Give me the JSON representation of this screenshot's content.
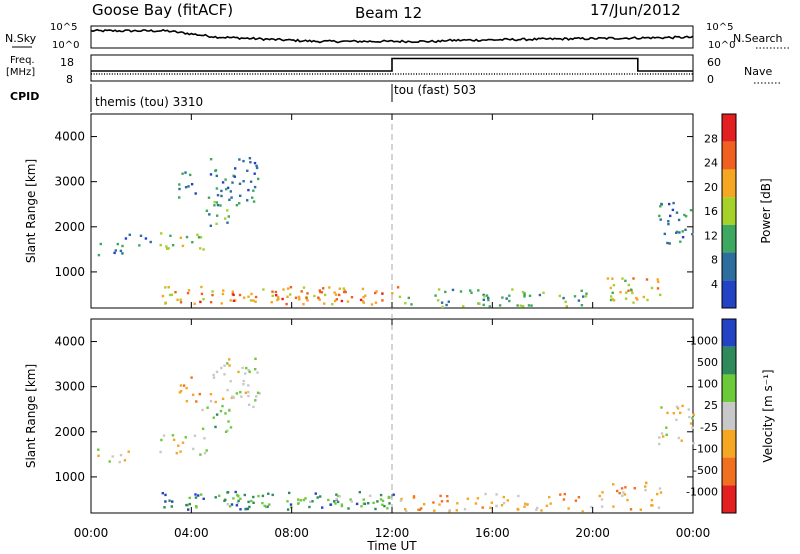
{
  "header": {
    "station": "Goose Bay (fitACF)",
    "beam": "Beam 12",
    "date": "17/Jun/2012"
  },
  "summary": {
    "nsky_label": "N.Sky",
    "nsky_ticks": [
      "10^5",
      "10^0"
    ],
    "nsearch_label": "N.Search",
    "nsearch_ticks": [
      "10^5",
      "10^0"
    ],
    "freq_label": "Freq.",
    "freq_unit": "[MHz]",
    "freq_ticks": [
      "18",
      "8"
    ],
    "nave_label": "Nave",
    "nave_ticks": [
      "60",
      "0"
    ],
    "cpid_label": "CPID",
    "cpid_segments": [
      {
        "name": "themis (tou) 3310",
        "start_hour": 0,
        "end_hour": 12
      },
      {
        "name": "tou (fast) 503",
        "start_hour": 12,
        "end_hour": 24
      }
    ],
    "nave_step": [
      {
        "hour": 0,
        "value": 23
      },
      {
        "hour": 12,
        "value": 23
      },
      {
        "hour": 12,
        "value": 52
      },
      {
        "hour": 21.8,
        "value": 52
      },
      {
        "hour": 21.8,
        "value": 23
      },
      {
        "hour": 24,
        "value": 23
      }
    ]
  },
  "chart_data": [
    {
      "type": "heatmap",
      "name": "power",
      "ylabel": "Slant Range [km]",
      "ylim": [
        200,
        4500
      ],
      "yticks": [
        1000,
        2000,
        3000,
        4000
      ],
      "colorbar_label": "Power [dB]",
      "colorbar_ticks": [
        "28",
        "24",
        "20",
        "16",
        "12",
        "8",
        "4"
      ],
      "colorbar_colors": [
        "#e41f1f",
        "#f06020",
        "#f5a623",
        "#a6d128",
        "#3fa860",
        "#2e6e9e",
        "#2244c4"
      ],
      "regions": [
        {
          "h0": 0.2,
          "h1": 1.6,
          "r0": 1350,
          "r1": 1650,
          "level": 1
        },
        {
          "h0": 1.3,
          "h1": 2.6,
          "r0": 1600,
          "r1": 1850,
          "level": 1
        },
        {
          "h0": 2.7,
          "h1": 4.6,
          "r0": 1500,
          "r1": 1950,
          "level": 3
        },
        {
          "h0": 3.4,
          "h1": 4.3,
          "r0": 2650,
          "r1": 3250,
          "level": 1
        },
        {
          "h0": 4.4,
          "h1": 5.6,
          "r0": 2000,
          "r1": 2700,
          "level": 2
        },
        {
          "h0": 4.7,
          "h1": 6.7,
          "r0": 2500,
          "r1": 3650,
          "level": 1
        },
        {
          "h0": 2.8,
          "h1": 12.3,
          "r0": 300,
          "r1": 700,
          "level": 4
        },
        {
          "h0": 4.2,
          "h1": 11.6,
          "r0": 350,
          "r1": 600,
          "level": 5
        },
        {
          "h0": 12.2,
          "h1": 20.0,
          "r0": 250,
          "r1": 650,
          "level": 2
        },
        {
          "h0": 20.1,
          "h1": 21.7,
          "r0": 300,
          "r1": 900,
          "level": 3
        },
        {
          "h0": 21.2,
          "h1": 22.7,
          "r0": 400,
          "r1": 900,
          "level": 4
        },
        {
          "h0": 22.6,
          "h1": 24.0,
          "r0": 1700,
          "r1": 2600,
          "level": 1
        },
        {
          "h0": 22.9,
          "h1": 23.6,
          "r0": 1650,
          "r1": 1950,
          "level": 2
        }
      ]
    },
    {
      "type": "heatmap",
      "name": "velocity",
      "ylabel": "Slant Range [km]",
      "xlabel": "Time UT",
      "xticks": [
        "00:00",
        "04:00",
        "08:00",
        "12:00",
        "16:00",
        "20:00",
        "00:00"
      ],
      "ylim": [
        200,
        4500
      ],
      "yticks": [
        1000,
        2000,
        3000,
        4000
      ],
      "colorbar_label": "Velocity [m s⁻¹]",
      "colorbar_ticks": [
        "1000",
        "500",
        "100",
        "25",
        "-25",
        "-100",
        "-500",
        "-1000"
      ],
      "colorbar_colors": [
        "#2244c4",
        "#2e8a5a",
        "#6cc93a",
        "#c8c8c8",
        "#f5a623",
        "#f07020",
        "#e41f1f"
      ],
      "regions": [
        {
          "h0": 0.2,
          "h1": 1.6,
          "r0": 1350,
          "r1": 1650,
          "level": 3
        },
        {
          "h0": 2.7,
          "h1": 4.6,
          "r0": 1500,
          "r1": 1950,
          "level": 3
        },
        {
          "h0": 3.4,
          "h1": 4.3,
          "r0": 2650,
          "r1": 3250,
          "level": 2
        },
        {
          "h0": 4.4,
          "h1": 5.6,
          "r0": 2000,
          "r1": 2700,
          "level": 4
        },
        {
          "h0": 4.7,
          "h1": 6.7,
          "r0": 2500,
          "r1": 3650,
          "level": 3
        },
        {
          "h0": 2.8,
          "h1": 12.3,
          "r0": 300,
          "r1": 700,
          "level": 5
        },
        {
          "h0": 4.0,
          "h1": 12.0,
          "r0": 350,
          "r1": 650,
          "level": 4
        },
        {
          "h0": 12.2,
          "h1": 20.0,
          "r0": 250,
          "r1": 650,
          "level": 2
        },
        {
          "h0": 20.1,
          "h1": 22.7,
          "r0": 300,
          "r1": 900,
          "level": 2
        },
        {
          "h0": 22.6,
          "h1": 24.0,
          "r0": 1700,
          "r1": 2600,
          "level": 3
        }
      ]
    }
  ]
}
